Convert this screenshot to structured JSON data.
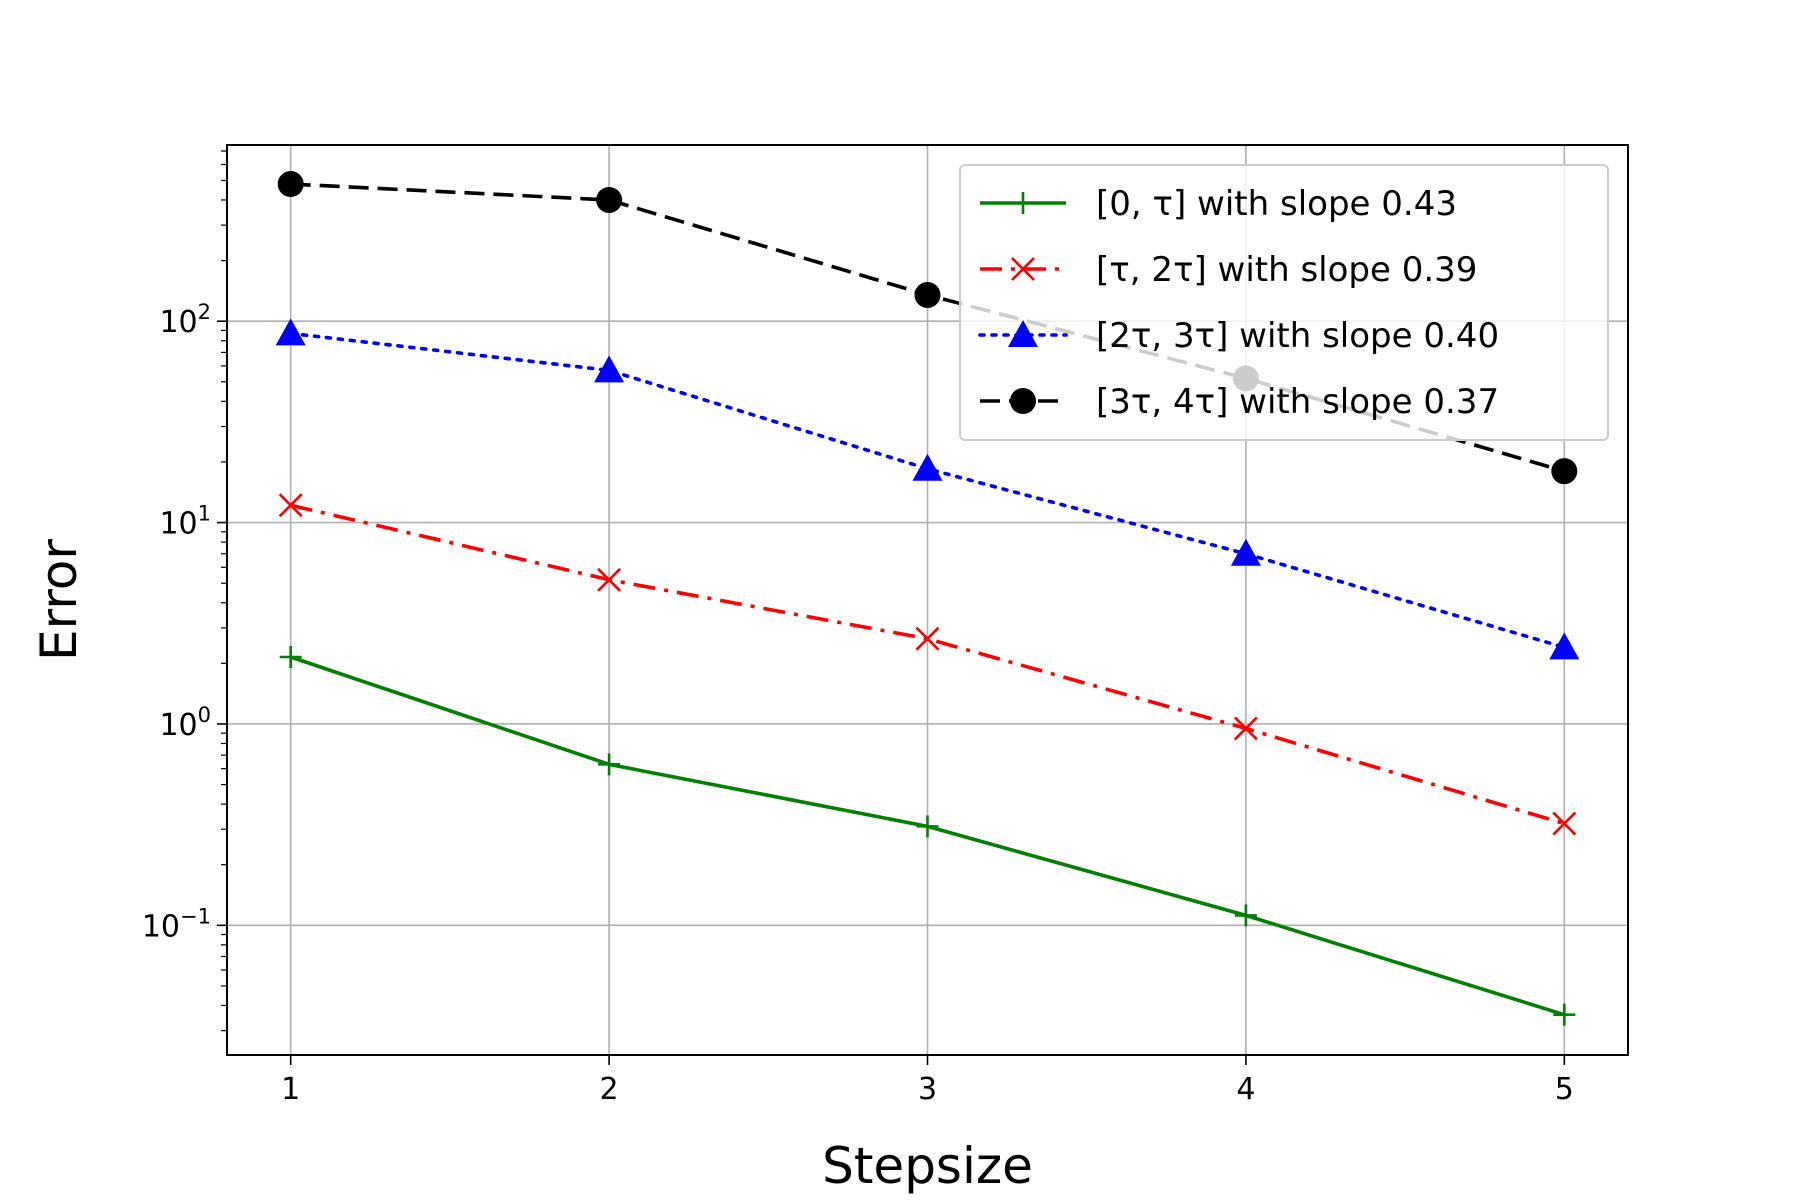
{
  "chart_data": {
    "type": "line",
    "title": "",
    "xlabel": "Stepsize",
    "ylabel": "Error",
    "x": [
      1,
      2,
      3,
      4,
      5
    ],
    "xticks": [
      "1",
      "2",
      "3",
      "4",
      "5"
    ],
    "xlim": [
      0.8,
      5.2
    ],
    "yscale": "log",
    "ylim": [
      0.0227,
      750
    ],
    "yticks": [
      {
        "value": 0.1,
        "base": "10",
        "exp": "−1"
      },
      {
        "value": 1,
        "base": "10",
        "exp": "0"
      },
      {
        "value": 10,
        "base": "10",
        "exp": "1"
      },
      {
        "value": 100,
        "base": "10",
        "exp": "2"
      }
    ],
    "grid": true,
    "legend_position": "top-right",
    "series": [
      {
        "name": "[0, τ] with slope 0.43",
        "values": [
          2.15,
          0.63,
          0.31,
          0.112,
          0.036
        ],
        "color": "#008000",
        "marker": "plus",
        "linestyle": "solid"
      },
      {
        "name": "[τ, 2τ] with slope 0.39",
        "values": [
          12.2,
          5.2,
          2.65,
          0.95,
          0.32
        ],
        "color": "#ff0000",
        "marker": "x",
        "linestyle": "dashdot"
      },
      {
        "name": "[2τ, 3τ] with slope 0.40",
        "values": [
          87,
          57,
          18.5,
          7.0,
          2.4
        ],
        "color": "#0000ff",
        "marker": "triangle",
        "linestyle": "dotted"
      },
      {
        "name": "[3τ, 4τ] with slope 0.37",
        "values": [
          480,
          400,
          135,
          52,
          18
        ],
        "color": "#000000",
        "marker": "circle",
        "linestyle": "dashed"
      }
    ]
  }
}
